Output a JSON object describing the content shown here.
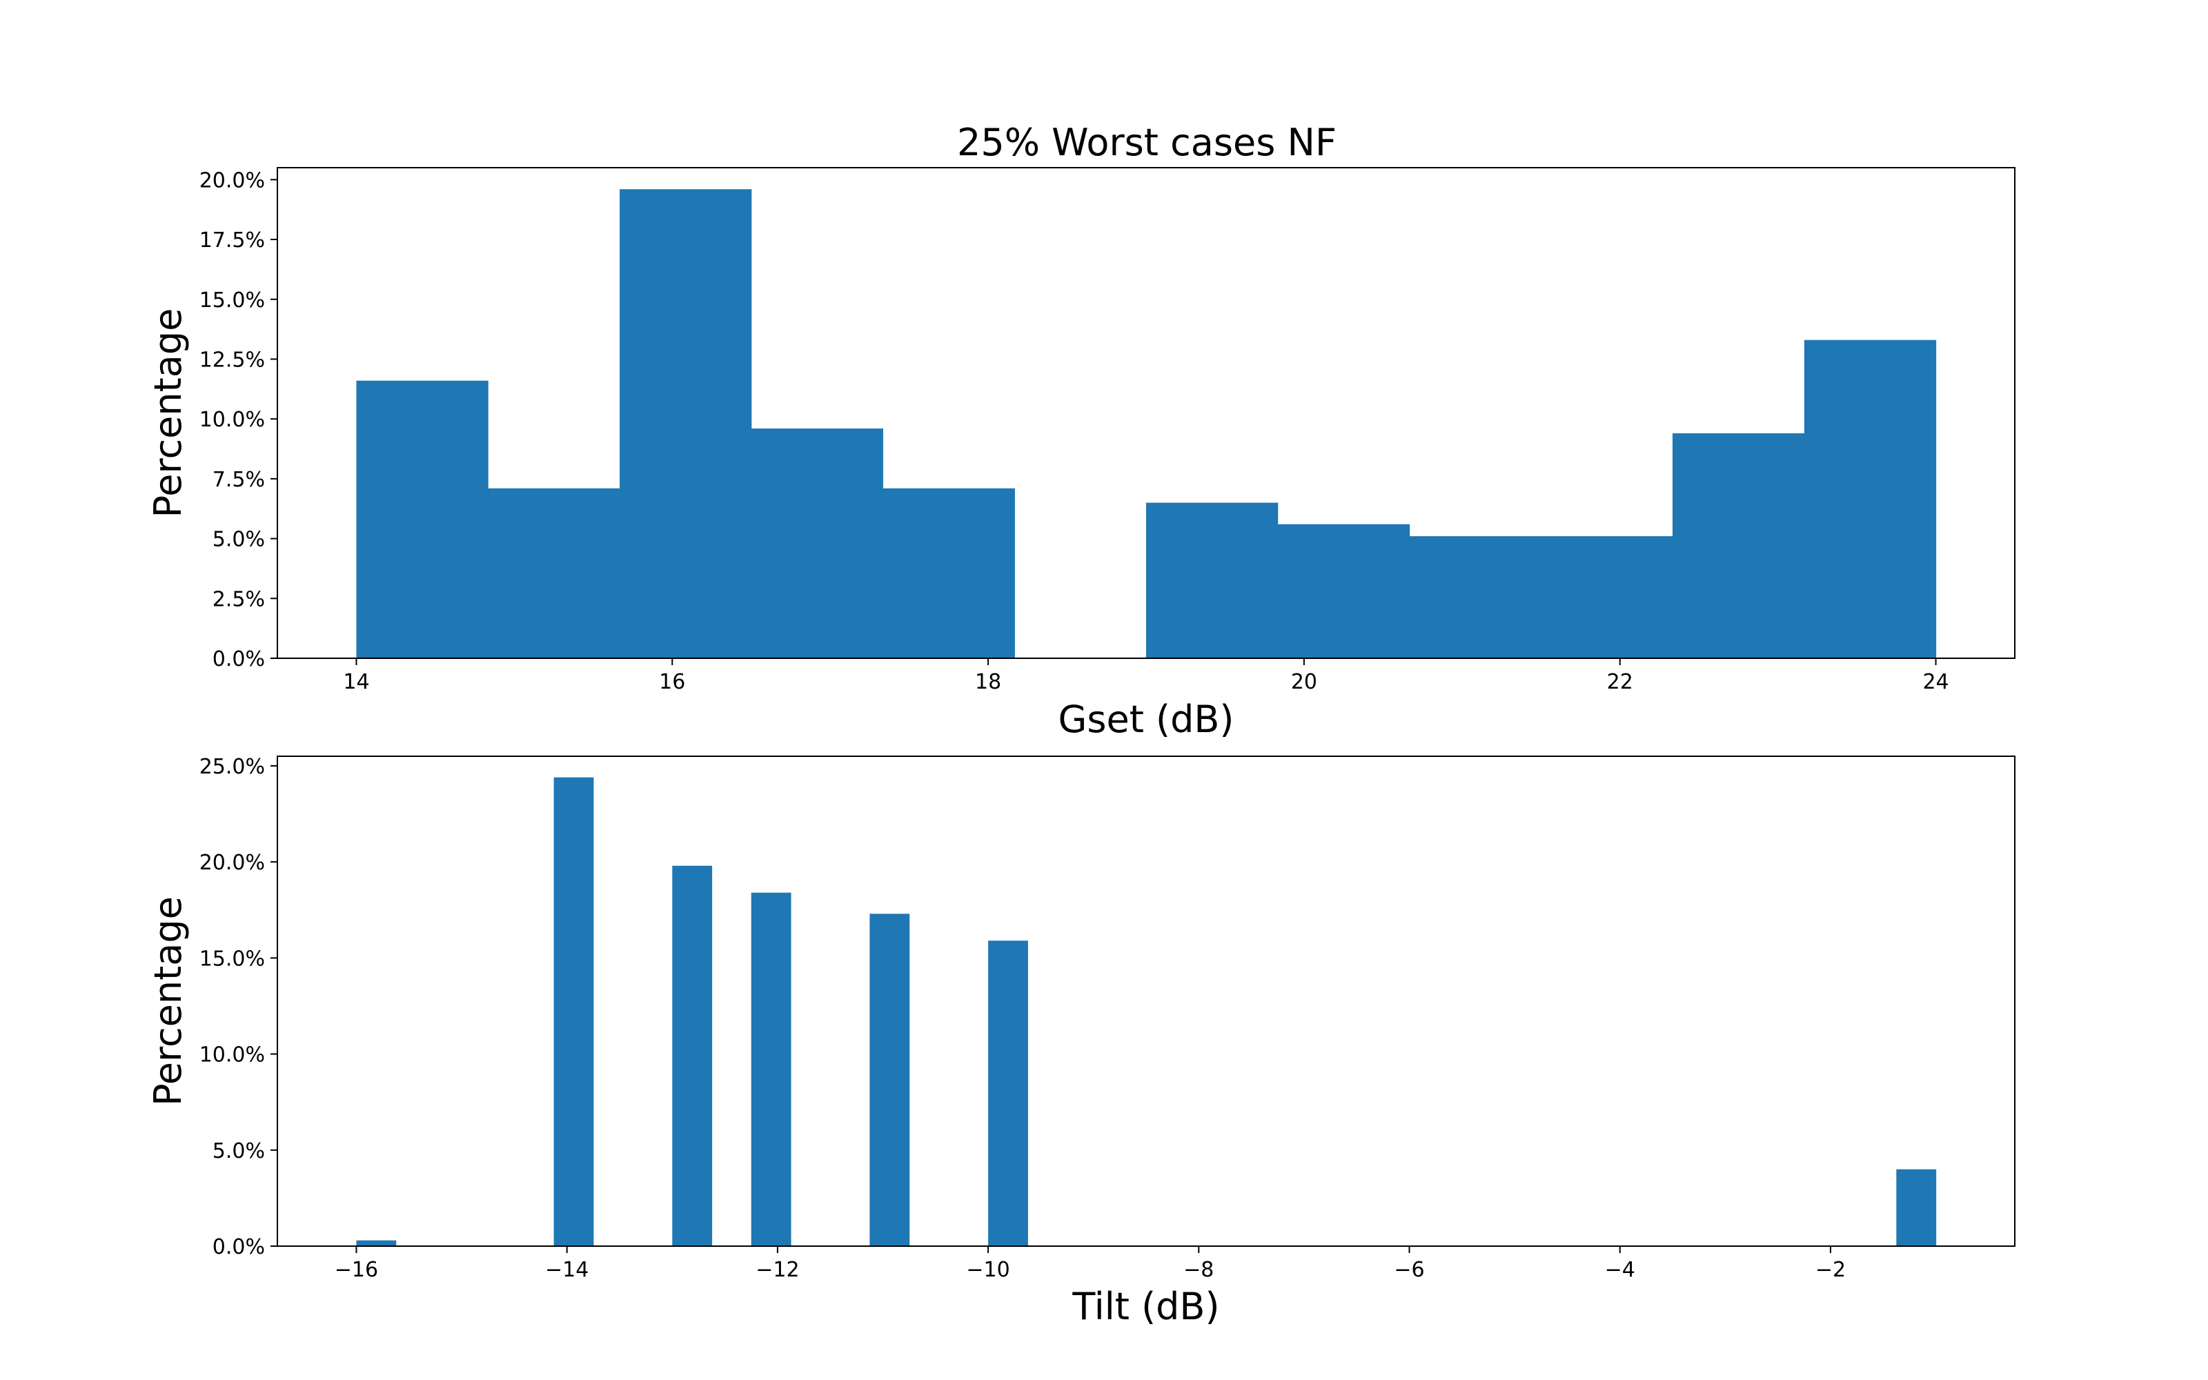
{
  "figure": {
    "title": "25% Worst cases NF"
  },
  "chart_data": [
    {
      "type": "bar",
      "subtype": "histogram",
      "title": "25% Worst cases NF",
      "xlabel": "Gset (dB)",
      "ylabel": "Percentage",
      "xlim": [
        13.5,
        24.5
      ],
      "ylim": [
        0,
        20.5
      ],
      "xticks": [
        14,
        16,
        18,
        20,
        22,
        24
      ],
      "xtick_labels": [
        "14",
        "16",
        "18",
        "20",
        "22",
        "24"
      ],
      "yticks": [
        0,
        2.5,
        5,
        7.5,
        10,
        12.5,
        15,
        17.5,
        20
      ],
      "ytick_labels": [
        "0.0%",
        "2.5%",
        "5.0%",
        "7.5%",
        "10.0%",
        "12.5%",
        "15.0%",
        "17.5%",
        "20.0%"
      ],
      "bin_edges": [
        14.0,
        14.833,
        15.667,
        16.5,
        17.333,
        18.167,
        19.0,
        19.833,
        20.667,
        21.5,
        22.333,
        23.167,
        24.0
      ],
      "values": [
        11.6,
        7.1,
        19.6,
        9.6,
        7.1,
        0,
        6.5,
        5.6,
        5.1,
        5.1,
        9.4,
        13.3
      ],
      "color": "#1f77b4",
      "grid": false
    },
    {
      "type": "bar",
      "subtype": "histogram",
      "xlabel": "Tilt (dB)",
      "ylabel": "Percentage",
      "xlim": [
        -16.75,
        -0.25
      ],
      "ylim": [
        0,
        25.5
      ],
      "xticks": [
        -16,
        -14,
        -12,
        -10,
        -8,
        -6,
        -4,
        -2
      ],
      "xtick_labels": [
        "−16",
        "−14",
        "−12",
        "−10",
        "−8",
        "−6",
        "−4",
        "−2"
      ],
      "yticks": [
        0,
        5,
        10,
        15,
        20,
        25
      ],
      "ytick_labels": [
        "0.0%",
        "5.0%",
        "10.0%",
        "15.0%",
        "20.0%",
        "25.0%"
      ],
      "bars": [
        {
          "x0": -16.0,
          "x1": -15.625,
          "value": 0.3
        },
        {
          "x0": -14.125,
          "x1": -13.75,
          "value": 24.4
        },
        {
          "x0": -13.0,
          "x1": -12.625,
          "value": 19.8
        },
        {
          "x0": -12.25,
          "x1": -11.875,
          "value": 18.4
        },
        {
          "x0": -11.125,
          "x1": -10.75,
          "value": 17.3
        },
        {
          "x0": -10.0,
          "x1": -9.625,
          "value": 15.9
        },
        {
          "x0": -1.375,
          "x1": -1.0,
          "value": 4.0
        }
      ],
      "color": "#1f77b4",
      "grid": false
    }
  ]
}
